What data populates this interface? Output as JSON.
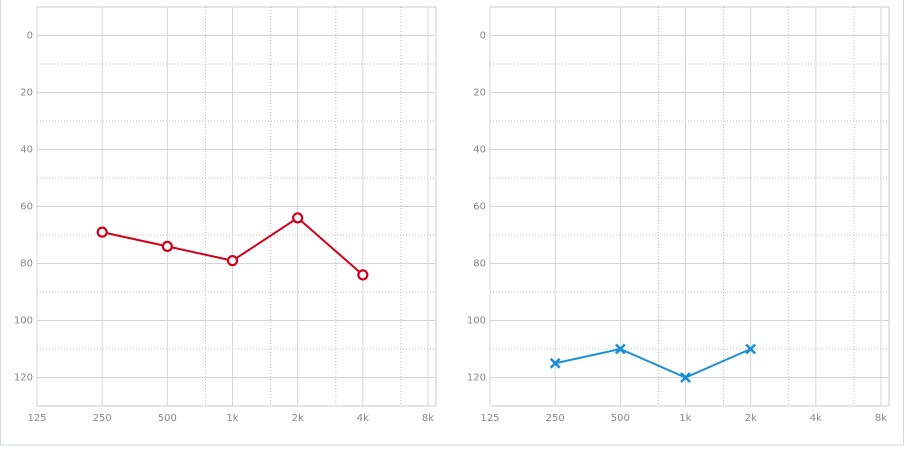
{
  "chart_data": [
    {
      "type": "line",
      "x": [
        250,
        500,
        1000,
        2000,
        4000
      ],
      "values": [
        69,
        74,
        79,
        64,
        84
      ],
      "color": "#d0021b",
      "marker": "circle",
      "xscale": "log",
      "xlim": [
        125,
        8000
      ],
      "xticks": [
        125,
        250,
        500,
        {
          "value": 1000,
          "label": "1k"
        },
        {
          "value": 2000,
          "label": "2k"
        },
        {
          "value": 4000,
          "label": "4k"
        },
        {
          "value": 8000,
          "label": "8k"
        }
      ],
      "xminor": [
        750,
        1500,
        3000,
        6000
      ],
      "ylim": [
        -10,
        130
      ],
      "yinverted": true,
      "yticks": [
        0,
        20,
        40,
        60,
        80,
        100,
        120
      ],
      "yminor": [
        10,
        30,
        50,
        70,
        90,
        110
      ],
      "grid": true
    },
    {
      "type": "line",
      "x": [
        250,
        500,
        1000,
        2000
      ],
      "values": [
        115,
        110,
        120,
        110
      ],
      "color": "#1a8fd6",
      "marker": "cross",
      "xscale": "log",
      "xlim": [
        125,
        8000
      ],
      "xticks": [
        125,
        250,
        500,
        {
          "value": 1000,
          "label": "1k"
        },
        {
          "value": 2000,
          "label": "2k"
        },
        {
          "value": 4000,
          "label": "4k"
        },
        {
          "value": 8000,
          "label": "8k"
        }
      ],
      "xminor": [
        750,
        1500,
        3000,
        6000
      ],
      "ylim": [
        -10,
        130
      ],
      "yinverted": true,
      "yticks": [
        0,
        20,
        40,
        60,
        80,
        100,
        120
      ],
      "yminor": [
        10,
        30,
        50,
        70,
        90,
        110
      ],
      "grid": true
    }
  ]
}
